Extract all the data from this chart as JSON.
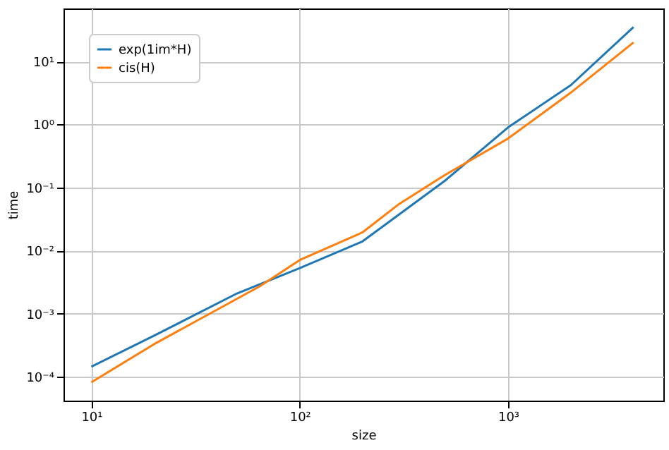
{
  "chart_data": {
    "type": "line",
    "xlabel": "size",
    "ylabel": "time",
    "log": "xy",
    "grid": true,
    "legend": "top left",
    "xlim": [
      7.35,
      5560
    ],
    "ylim": [
      4.2e-05,
      69
    ],
    "xticks": [
      {
        "value": 10,
        "label": "10¹"
      },
      {
        "value": 100,
        "label": "10²"
      },
      {
        "value": 1000,
        "label": "10³"
      }
    ],
    "yticks": [
      {
        "value": 0.0001,
        "label": "10⁻⁴"
      },
      {
        "value": 0.001,
        "label": "10⁻³"
      },
      {
        "value": 0.01,
        "label": "10⁻²"
      },
      {
        "value": 0.1,
        "label": "10⁻¹"
      },
      {
        "value": 1,
        "label": "10⁰"
      },
      {
        "value": 10,
        "label": "10¹"
      }
    ],
    "series": [
      {
        "name": "exp(1im*H)",
        "color": "#1f77b4",
        "x": [
          10,
          20,
          50,
          100,
          200,
          500,
          1000,
          2000,
          4000
        ],
        "values": [
          0.000145,
          0.00045,
          0.0021,
          0.0053,
          0.014,
          0.13,
          0.9,
          4.2,
          35
        ]
      },
      {
        "name": "cis(H)",
        "color": "#ff7f0e",
        "x": [
          10,
          20,
          64,
          100,
          200,
          300,
          500,
          1000,
          2000,
          4000
        ],
        "values": [
          8.2e-05,
          0.00033,
          0.0027,
          0.0071,
          0.0195,
          0.055,
          0.16,
          0.6,
          3.2,
          20
        ]
      }
    ]
  }
}
